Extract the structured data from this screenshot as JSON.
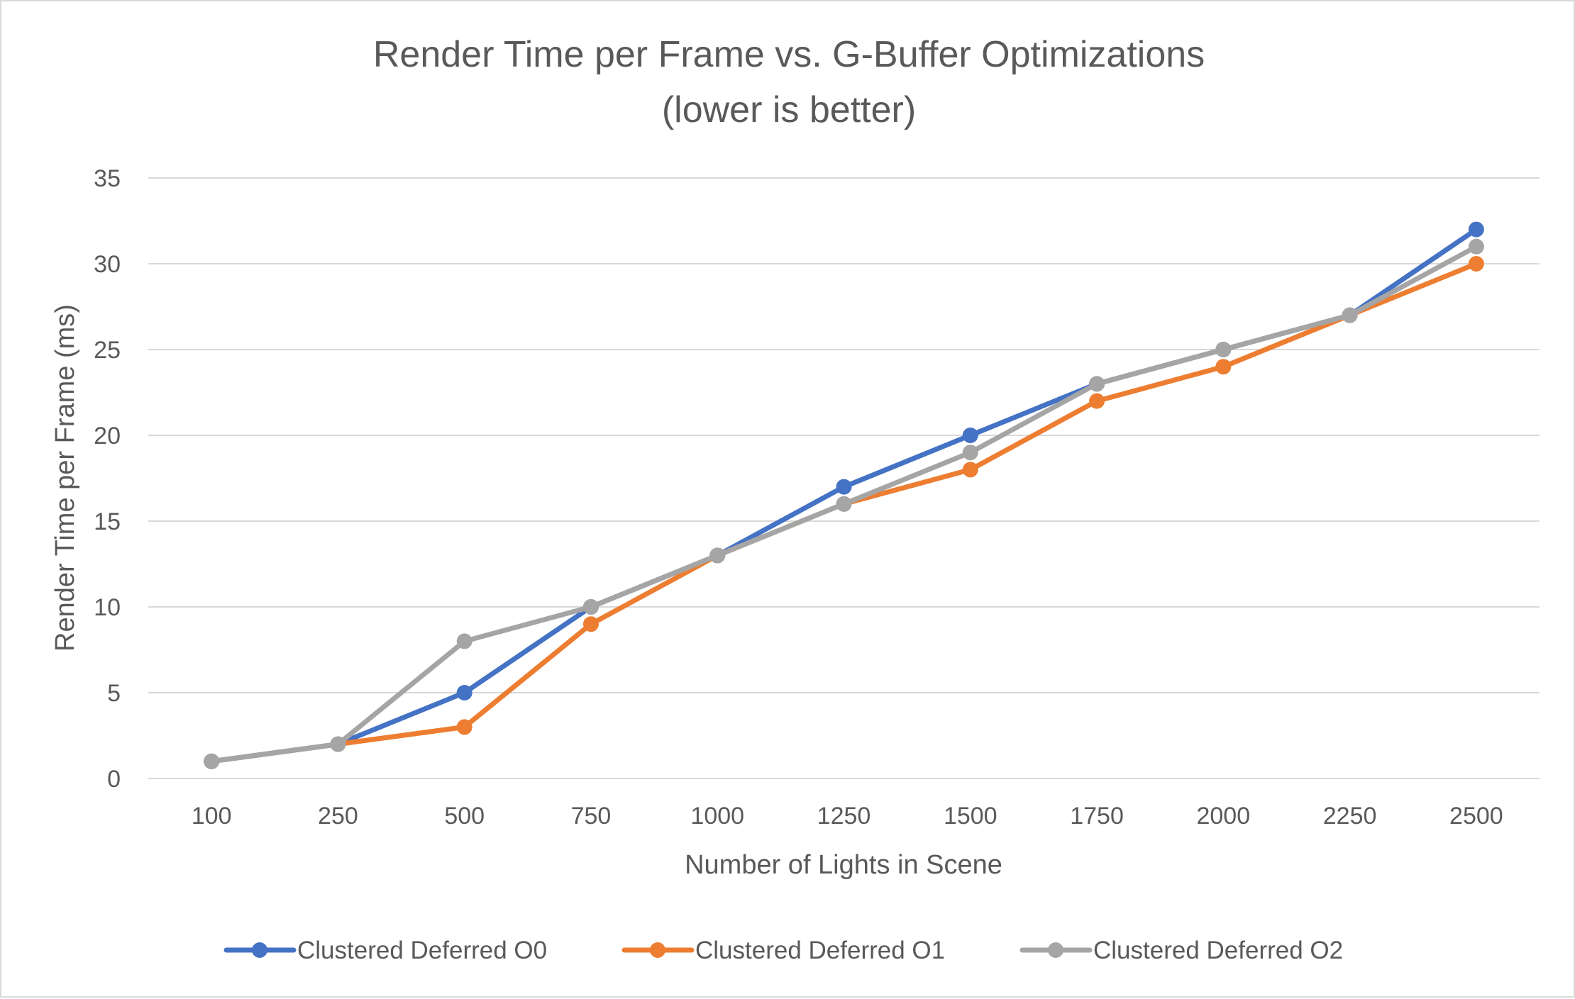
{
  "chart_data": {
    "type": "line",
    "title": "Render Time per Frame vs. G-Buffer Optimizations",
    "subtitle": "(lower is better)",
    "xlabel": "Number of Lights in Scene",
    "ylabel": "Render Time per Frame (ms)",
    "categories": [
      "100",
      "250",
      "500",
      "750",
      "1000",
      "1250",
      "1500",
      "1750",
      "2000",
      "2250",
      "2500"
    ],
    "ylim": [
      0,
      35
    ],
    "yticks": [
      0,
      5,
      10,
      15,
      20,
      25,
      30,
      35
    ],
    "grid": true,
    "legend": "bottom",
    "series": [
      {
        "name": "Clustered Deferred O0",
        "color": "#4472c4",
        "values": [
          1,
          2,
          5,
          10,
          13,
          17,
          20,
          23,
          25,
          27,
          32
        ]
      },
      {
        "name": "Clustered Deferred O1",
        "color": "#ed7d31",
        "values": [
          1,
          2,
          3,
          9,
          13,
          16,
          18,
          22,
          24,
          27,
          30
        ]
      },
      {
        "name": "Clustered Deferred O2",
        "color": "#a5a5a5",
        "values": [
          1,
          2,
          8,
          10,
          13,
          16,
          19,
          23,
          25,
          27,
          31
        ]
      }
    ]
  }
}
